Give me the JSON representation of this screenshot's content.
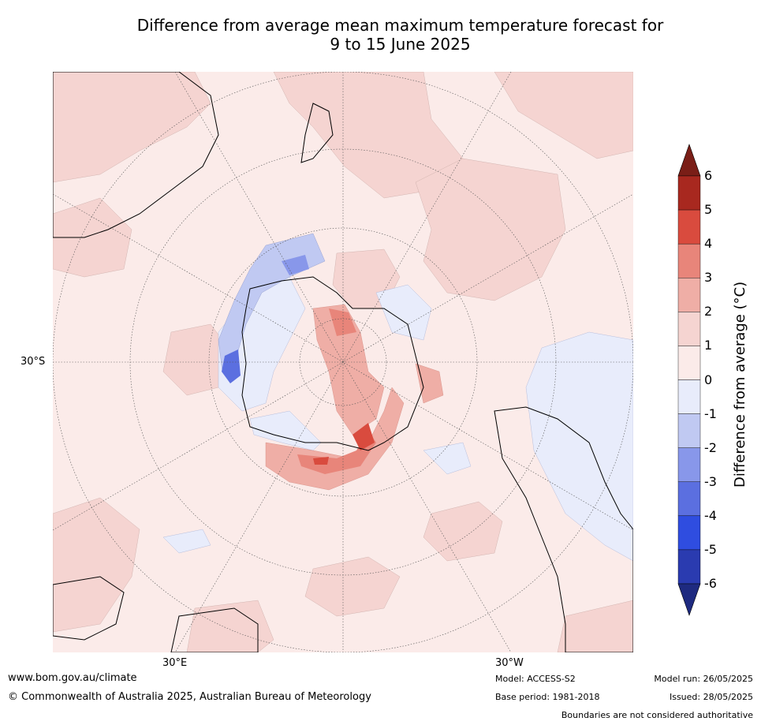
{
  "title_line1": "Difference from average mean maximum temperature forecast for",
  "title_line2": "9 to 15 June 2025",
  "map": {
    "projection": "south-polar-stereographic",
    "lat_label": "30°S",
    "lon_labels": [
      "30°E",
      "30°W"
    ],
    "background_color": "#fbebe9",
    "coastline_color": "#000000",
    "border_color": "#808080"
  },
  "colorbar": {
    "title": "Difference from average (°C)",
    "ticks": [
      "6",
      "5",
      "4",
      "3",
      "2",
      "1",
      "0",
      "-1",
      "-2",
      "-3",
      "-4",
      "-5",
      "-6"
    ],
    "colors_high_to_low": [
      "#7a1e17",
      "#a8281f",
      "#d94b3e",
      "#e8857a",
      "#efaea6",
      "#f5d4d1",
      "#fbebe9",
      "#e8ecfb",
      "#c0c9f2",
      "#8897ea",
      "#5b6fe0",
      "#2f4de0",
      "#2a3bb0",
      "#1e2a80"
    ]
  },
  "footer": {
    "website": "www.bom.gov.au/climate",
    "copyright": "© Commonwealth of Australia 2025, Australian Bureau of Meteorology",
    "model": "Model: ACCESS-S2",
    "base_period": "Base period: 1981-2018",
    "model_run": "Model run: 26/05/2025",
    "issued": "Issued: 28/05/2025",
    "disclaimer": "Boundaries are not considered authoritative"
  }
}
